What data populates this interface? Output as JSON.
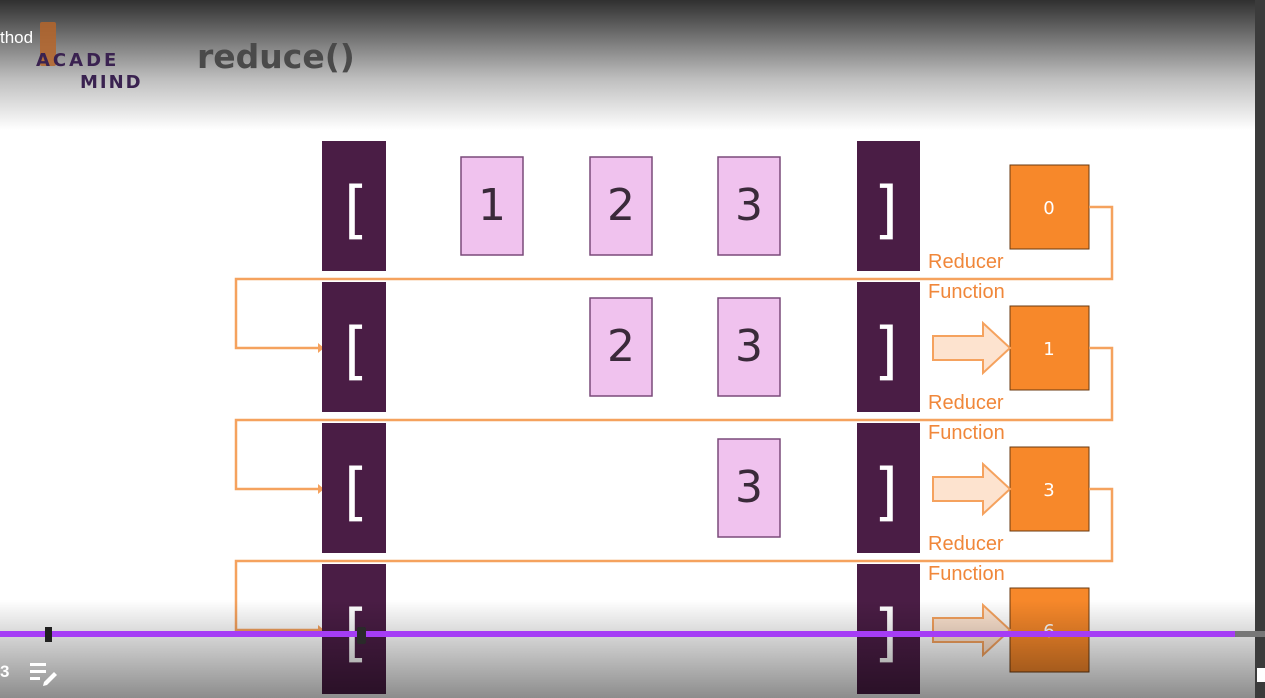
{
  "video": {
    "title_fragment": "thod",
    "time_fragment": "3",
    "played_fraction": 0.976,
    "chapter_marker_fractions": [
      0.039,
      0.284
    ],
    "handle_fraction": 0.285
  },
  "logo": {
    "line1": "ACADE",
    "line2": "MIND"
  },
  "slide": {
    "title": "reduce()",
    "colors": {
      "bracket": "#4a1d45",
      "element_fill": "#f0c2ee",
      "accumulator": "#f7882a",
      "arrow": "#f5a25e",
      "label": "#f0873a"
    },
    "bracket_left": "[",
    "bracket_right": "]",
    "rows": [
      {
        "elements": [
          "1",
          "2",
          "3"
        ],
        "accumulator": "0"
      },
      {
        "elements": [
          "2",
          "3"
        ],
        "accumulator": "1"
      },
      {
        "elements": [
          "3"
        ],
        "accumulator": "3"
      },
      {
        "elements": [],
        "accumulator": "6"
      }
    ],
    "reducer_label_line1": "Reducer",
    "reducer_label_line2": "Function"
  },
  "icons": {
    "playlist": "playlist-edit-icon"
  }
}
